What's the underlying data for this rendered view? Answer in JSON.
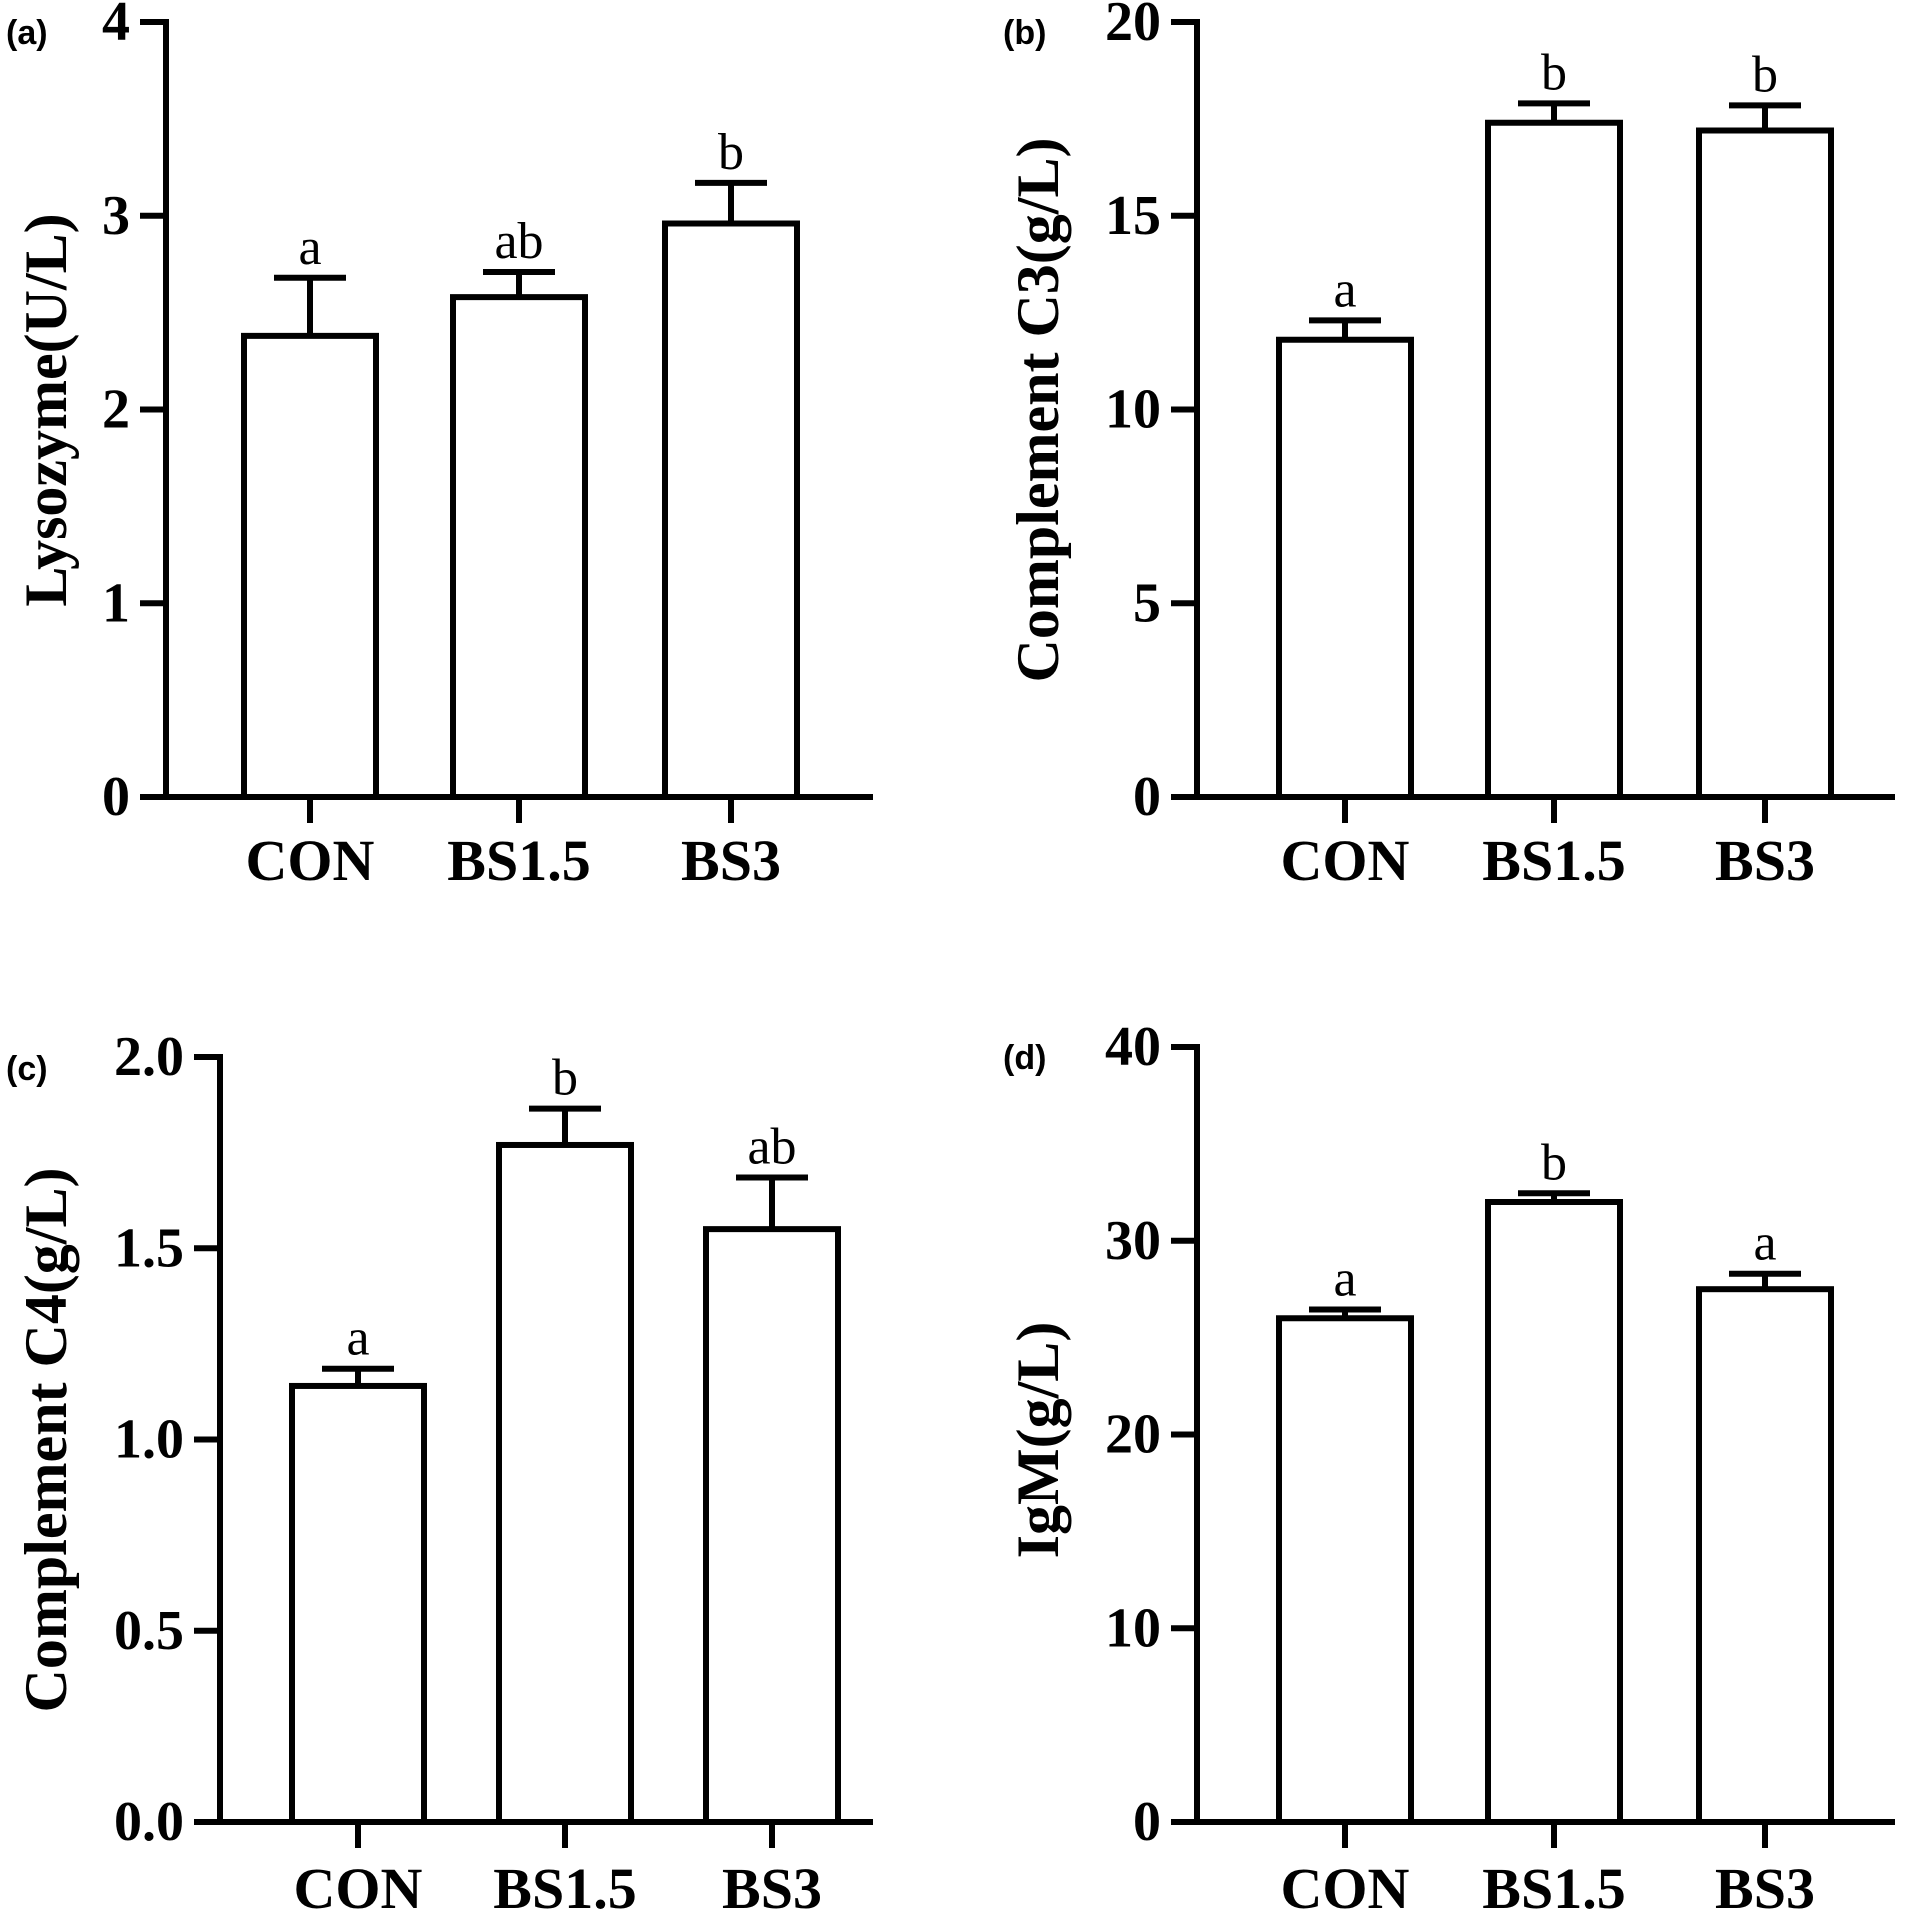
{
  "chart_data": [
    {
      "type": "bar",
      "panel_label": "(a)",
      "categories": [
        "CON",
        "BS1.5",
        "BS3"
      ],
      "values": [
        2.38,
        2.58,
        2.96
      ],
      "errors": [
        0.3,
        0.13,
        0.21
      ],
      "significance": [
        "a",
        "ab",
        "b"
      ],
      "ylabel": "Lysozyme(U/L)",
      "ylim": [
        0,
        4
      ],
      "yticks": [
        0,
        1,
        2,
        3,
        4
      ],
      "ytick_labels": [
        "0",
        "1",
        "2",
        "3",
        "4"
      ]
    },
    {
      "type": "bar",
      "panel_label": "(b)",
      "categories": [
        "CON",
        "BS1.5",
        "BS3"
      ],
      "values": [
        11.8,
        17.4,
        17.2
      ],
      "errors": [
        0.5,
        0.5,
        0.65
      ],
      "significance": [
        "a",
        "b",
        "b"
      ],
      "ylabel": "Complement C3(g/L)",
      "ylim": [
        0,
        20
      ],
      "yticks": [
        0,
        5,
        10,
        15,
        20
      ],
      "ytick_labels": [
        "0",
        "5",
        "10",
        "15",
        "20"
      ]
    },
    {
      "type": "bar",
      "panel_label": "(c)",
      "categories": [
        "CON",
        "BS1.5",
        "BS3"
      ],
      "values": [
        1.14,
        1.77,
        1.55
      ],
      "errors": [
        0.045,
        0.095,
        0.135
      ],
      "significance": [
        "a",
        "b",
        "ab"
      ],
      "ylabel": "Complement C4(g/L)",
      "ylim": [
        0,
        2
      ],
      "yticks": [
        0,
        0.5,
        1,
        1.5,
        2
      ],
      "ytick_labels": [
        "0.0",
        "0.5",
        "1.0",
        "1.5",
        "2.0"
      ]
    },
    {
      "type": "bar",
      "panel_label": "(d)",
      "categories": [
        "CON",
        "BS1.5",
        "BS3"
      ],
      "values": [
        26,
        32,
        27.5
      ],
      "errors": [
        0.45,
        0.45,
        0.8
      ],
      "significance": [
        "a",
        "b",
        "a"
      ],
      "ylabel": "IgM(g/L)",
      "ylim": [
        0,
        40
      ],
      "yticks": [
        0,
        10,
        20,
        30,
        40
      ],
      "ytick_labels": [
        "0",
        "10",
        "20",
        "30",
        "40"
      ]
    }
  ]
}
